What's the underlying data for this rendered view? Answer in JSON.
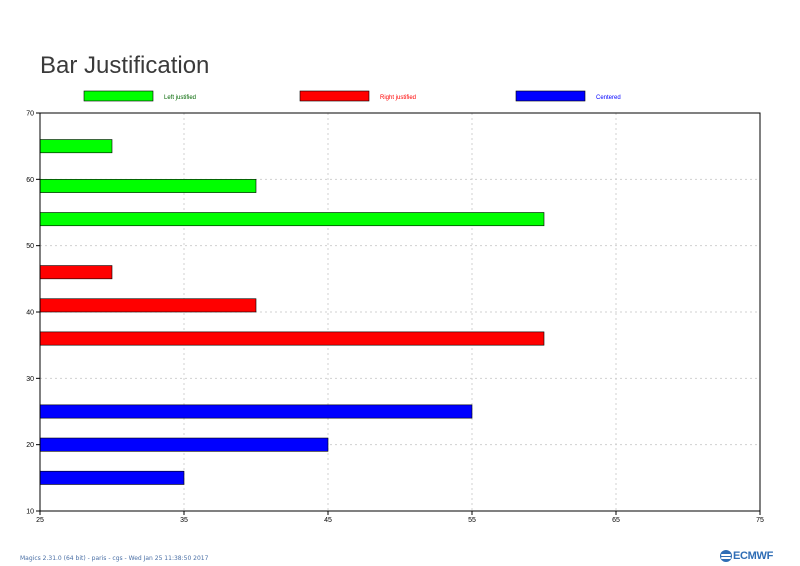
{
  "chart_data": {
    "type": "bar",
    "orientation": "horizontal",
    "title": "Bar Justification",
    "xlim": [
      25,
      75
    ],
    "ylim": [
      10,
      70
    ],
    "x_ticks": [
      25,
      35,
      45,
      55,
      65,
      75
    ],
    "y_ticks": [
      10,
      20,
      30,
      40,
      50,
      60,
      70
    ],
    "grid": true,
    "legend_position": "top",
    "series": [
      {
        "name": "Left justified",
        "color": "#00ff00",
        "justification": "left",
        "bars": [
          {
            "y": 64,
            "x": 30
          },
          {
            "y": 58,
            "x": 40
          },
          {
            "y": 53,
            "x": 60
          }
        ]
      },
      {
        "name": "Right justified",
        "color": "#ff0000",
        "justification": "right",
        "bars": [
          {
            "y": 47,
            "x": 30
          },
          {
            "y": 42,
            "x": 40
          },
          {
            "y": 37,
            "x": 60
          }
        ]
      },
      {
        "name": "Centered",
        "color": "#0000ff",
        "justification": "centered",
        "bars": [
          {
            "y": 25,
            "x": 55
          },
          {
            "y": 20,
            "x": 45
          },
          {
            "y": 15,
            "x": 35
          }
        ]
      }
    ],
    "bar_thickness": 2
  },
  "footer": {
    "text": "Magics 2.31.0 (64 bit) - paris - cgs - Wed Jan 25 11:38:50 2017",
    "logo": "ECMWF"
  }
}
